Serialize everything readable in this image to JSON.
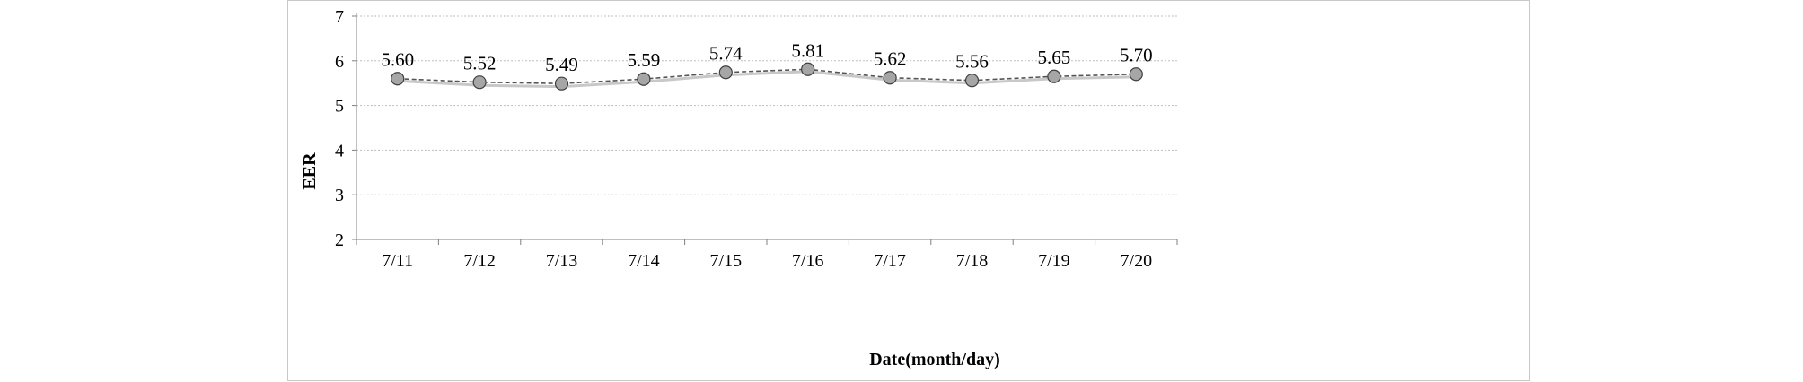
{
  "chart_data": {
    "type": "line",
    "title": "",
    "xlabel": "Date(month/day)",
    "ylabel": "EER",
    "ylim": [
      2,
      7
    ],
    "yticks": [
      "2",
      "3",
      "4",
      "5",
      "6",
      "7"
    ],
    "grid": true,
    "categories": [
      "7/11",
      "7/12",
      "7/13",
      "7/14",
      "7/15",
      "7/16",
      "7/17",
      "7/18",
      "7/19",
      "7/20"
    ],
    "series": [
      {
        "values": [
          5.6,
          5.52,
          5.49,
          5.59,
          5.74,
          5.81,
          5.62,
          5.56,
          5.65,
          5.7
        ],
        "labels": [
          "5.60",
          "5.52",
          "5.49",
          "5.59",
          "5.74",
          "5.81",
          "5.62",
          "5.56",
          "5.65",
          "5.70"
        ],
        "color": "#555555",
        "style": "dashed",
        "marker": "circle",
        "marker_fill": "#a6a6a6"
      },
      {
        "values": [
          5.55,
          5.45,
          5.42,
          5.53,
          5.68,
          5.76,
          5.57,
          5.5,
          5.6,
          5.64
        ],
        "color": "#c8c8c8",
        "style": "solid",
        "marker": "none"
      }
    ]
  }
}
